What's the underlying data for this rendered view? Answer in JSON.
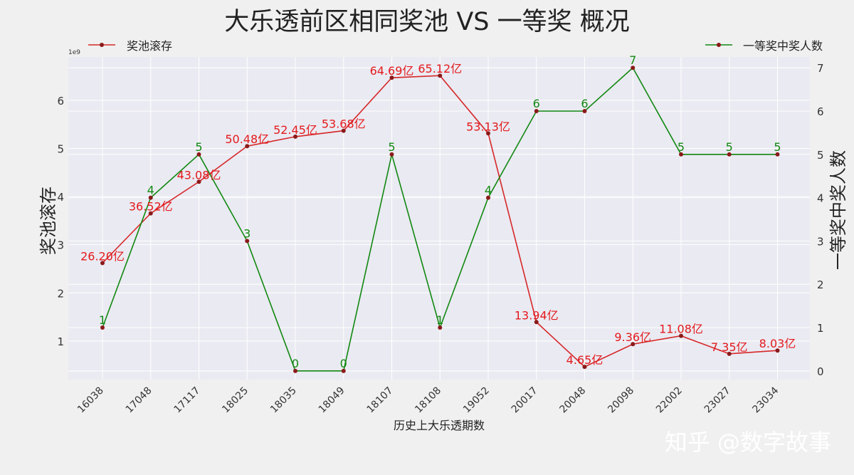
{
  "chart_data": {
    "type": "line",
    "title": "大乐透前区相同奖池 VS 一等奖 概况",
    "xlabel": "历史上大乐透期数",
    "ylabel_left": "奖池滚存",
    "ylabel_right": "一等奖中奖人数",
    "left_axis_multiplier": "1e9",
    "categories": [
      "16038",
      "17048",
      "17117",
      "18025",
      "18035",
      "18049",
      "18107",
      "18108",
      "19052",
      "20017",
      "20048",
      "20098",
      "22002",
      "23027",
      "23034"
    ],
    "series": [
      {
        "name": "奖池滚存",
        "axis": "left",
        "color": "#d62728",
        "values": [
          2.62,
          3.652,
          4.308,
          5.048,
          5.245,
          5.368,
          6.469,
          6.512,
          5.313,
          1.394,
          0.465,
          0.936,
          1.108,
          0.735,
          0.803
        ],
        "data_labels": [
          "26.20亿",
          "36.52亿",
          "43.08亿",
          "50.48亿",
          "52.45亿",
          "53.68亿",
          "64.69亿",
          "65.12亿",
          "53.13亿",
          "13.94亿",
          "4.65亿",
          "9.36亿",
          "11.08亿",
          "7.35亿",
          "8.03亿"
        ]
      },
      {
        "name": "一等奖中奖人数",
        "axis": "right",
        "color": "#118811",
        "values": [
          1,
          4,
          5,
          3,
          0,
          0,
          5,
          1,
          4,
          6,
          6,
          7,
          5,
          5,
          5
        ],
        "data_labels": [
          "1",
          "4",
          "5",
          "3",
          "0",
          "0",
          "5",
          "1",
          "4",
          "6",
          "6",
          "7",
          "5",
          "5",
          "5"
        ]
      }
    ],
    "ylim_left": [
      0.2,
      6.9
    ],
    "yticks_left": [
      "1",
      "2",
      "3",
      "4",
      "5",
      "6"
    ],
    "ylim_right": [
      -0.2,
      7.25
    ],
    "yticks_right": [
      "0",
      "1",
      "2",
      "3",
      "4",
      "5",
      "6",
      "7"
    ],
    "grid": true,
    "legend_left": "top-left",
    "legend_right": "top-right"
  },
  "watermark": "知乎 @数字故事",
  "colors": {
    "background": "#f0f0f0",
    "plot_background": "#eaeaf2",
    "grid": "#ffffff",
    "marker": "#8b1a1a"
  }
}
